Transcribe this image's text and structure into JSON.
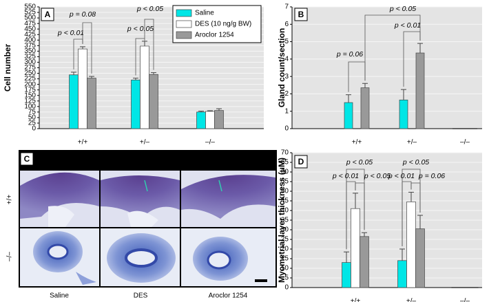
{
  "chart_data": [
    {
      "type": "bar",
      "panel_label": "A",
      "y_label": "Cell number",
      "categories": [
        "+/+",
        "+/–",
        "–/–"
      ],
      "series": [
        {
          "name": "Saline",
          "color": "#00e6e6",
          "values": [
            243,
            220,
            75
          ],
          "errors": [
            12,
            8,
            4
          ]
        },
        {
          "name": "DES (10 ng/g BW)",
          "color": "#ffffff",
          "values": [
            360,
            373,
            78
          ],
          "errors": [
            10,
            22,
            3
          ]
        },
        {
          "name": "Aroclor 1254",
          "color": "#999999",
          "values": [
            228,
            245,
            82
          ],
          "errors": [
            8,
            8,
            8
          ]
        }
      ],
      "ylim": [
        0,
        550
      ],
      "yticks": [
        0,
        25,
        50,
        75,
        100,
        125,
        150,
        175,
        200,
        225,
        250,
        275,
        300,
        325,
        350,
        375,
        400,
        425,
        450,
        475,
        500,
        525,
        550
      ],
      "grid": true,
      "legend": "top-right",
      "annotations": [
        "p < 0.01",
        "p = 0.08",
        "p < 0.05",
        "p < 0.05"
      ]
    },
    {
      "type": "bar",
      "panel_label": "B",
      "y_label": "Gland count/section",
      "categories": [
        "+/+",
        "+/–",
        "–/–"
      ],
      "series": [
        {
          "color": "#00e6e6",
          "values": [
            1.5,
            1.65,
            0
          ],
          "errors": [
            0.45,
            0.6,
            null
          ]
        },
        {
          "color": "#ffffff",
          "values": [
            null,
            null,
            0
          ],
          "errors": [
            null,
            null,
            null
          ]
        },
        {
          "color": "#999999",
          "values": [
            2.35,
            4.35,
            0
          ],
          "errors": [
            0.25,
            0.55,
            null
          ]
        }
      ],
      "ylim": [
        0,
        7
      ],
      "yticks": [
        0,
        1,
        2,
        3,
        4,
        5,
        6,
        7
      ],
      "grid": true,
      "annotations": [
        "p = 0.06",
        "p < 0.05",
        "p < 0.01"
      ]
    },
    {
      "type": "bar",
      "panel_label": "D",
      "y_label": "Myometrial layer thickness (μM)",
      "categories": [
        "+/+",
        "+/–",
        "–/–"
      ],
      "series": [
        {
          "color": "#00e6e6",
          "values": [
            13,
            14,
            0
          ],
          "errors": [
            5.5,
            6,
            null
          ]
        },
        {
          "color": "#ffffff",
          "values": [
            41,
            44.5,
            0
          ],
          "errors": [
            8,
            5,
            null
          ]
        },
        {
          "color": "#999999",
          "values": [
            26.5,
            30.5,
            0
          ],
          "errors": [
            2,
            7,
            null
          ]
        }
      ],
      "ylim": [
        0,
        70
      ],
      "yticks": [
        0,
        5,
        10,
        15,
        20,
        25,
        30,
        35,
        40,
        45,
        50,
        55,
        60,
        65,
        70
      ],
      "grid": true,
      "annotations": [
        "p < 0.05",
        "p < 0.01",
        "p < 0.05",
        "p < 0.05",
        "p < 0.01",
        "p = 0.06"
      ]
    }
  ],
  "micrographs": {
    "label": "C",
    "row_labels": [
      "+/+",
      "–/–"
    ],
    "column_labels": [
      "Saline",
      "DES",
      "Aroclor 1254"
    ]
  }
}
